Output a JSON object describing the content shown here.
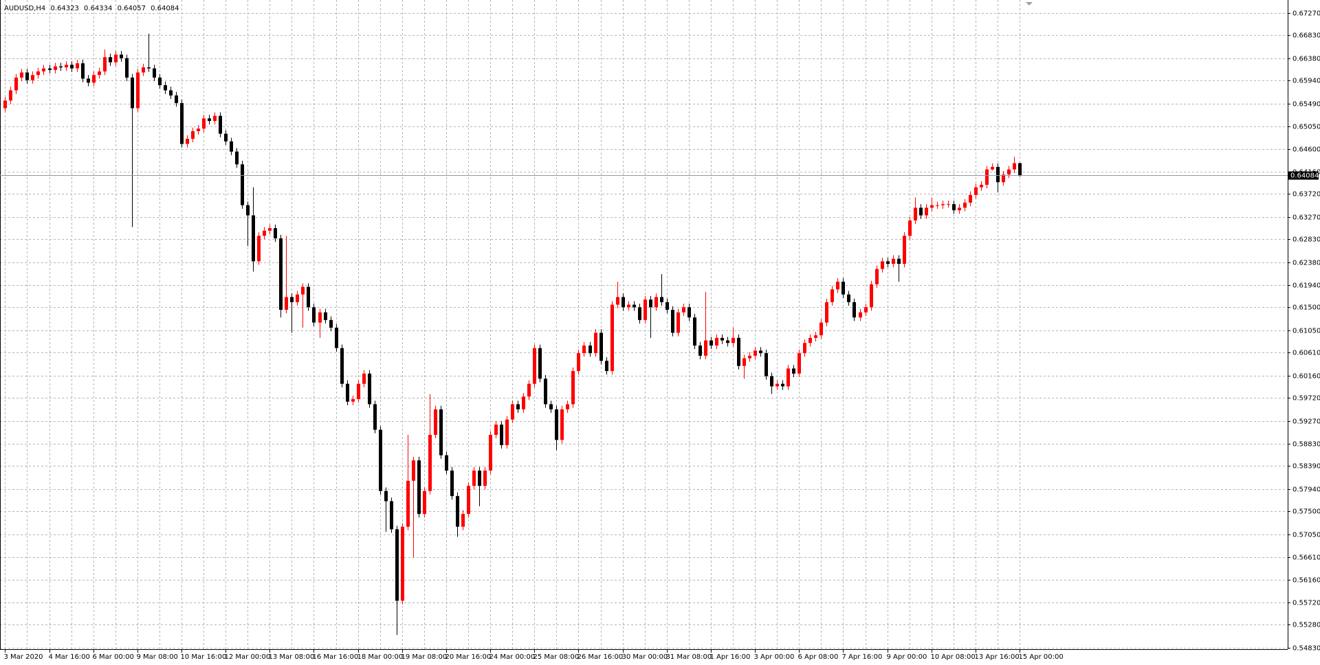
{
  "chart_data": {
    "type": "candlestick",
    "title": "AUDUSD,H4",
    "up_color": "#ff0000",
    "down_color": "#000000",
    "grid": true,
    "ylim": [
      0.548,
      0.6752
    ],
    "yticks": [
      {
        "value": 0.6727,
        "label": "0.67270"
      },
      {
        "value": 0.6683,
        "label": "0.66830"
      },
      {
        "value": 0.6638,
        "label": "0.66380"
      },
      {
        "value": 0.6594,
        "label": "0.65940"
      },
      {
        "value": 0.6549,
        "label": "0.65490"
      },
      {
        "value": 0.6505,
        "label": "0.65050"
      },
      {
        "value": 0.646,
        "label": "0.64600"
      },
      {
        "value": 0.6416,
        "label": "0.64160"
      },
      {
        "value": 0.6372,
        "label": "0.63720"
      },
      {
        "value": 0.6327,
        "label": "0.63270"
      },
      {
        "value": 0.6283,
        "label": "0.62830"
      },
      {
        "value": 0.6238,
        "label": "0.62380"
      },
      {
        "value": 0.6194,
        "label": "0.61940"
      },
      {
        "value": 0.615,
        "label": "0.61500"
      },
      {
        "value": 0.6105,
        "label": "0.61050"
      },
      {
        "value": 0.6061,
        "label": "0.60610"
      },
      {
        "value": 0.6016,
        "label": "0.60160"
      },
      {
        "value": 0.5972,
        "label": "0.59720"
      },
      {
        "value": 0.5927,
        "label": "0.59270"
      },
      {
        "value": 0.5883,
        "label": "0.58830"
      },
      {
        "value": 0.5839,
        "label": "0.58390"
      },
      {
        "value": 0.5794,
        "label": "0.57940"
      },
      {
        "value": 0.575,
        "label": "0.57500"
      },
      {
        "value": 0.5705,
        "label": "0.57050"
      },
      {
        "value": 0.5661,
        "label": "0.56610"
      },
      {
        "value": 0.5616,
        "label": "0.56160"
      },
      {
        "value": 0.5572,
        "label": "0.55720"
      },
      {
        "value": 0.5528,
        "label": "0.55280"
      },
      {
        "value": 0.5483,
        "label": "0.54830"
      }
    ],
    "categories": [
      "3 Mar 2020",
      null,
      null,
      null,
      null,
      null,
      null,
      null,
      "4 Mar 16:00",
      null,
      null,
      null,
      null,
      null,
      null,
      null,
      "6 Mar 00:00",
      null,
      null,
      null,
      null,
      null,
      null,
      null,
      "9 Mar 08:00",
      null,
      null,
      null,
      null,
      null,
      null,
      null,
      "10 Mar 16:00",
      null,
      null,
      null,
      null,
      null,
      null,
      null,
      "12 Mar 00:00",
      null,
      null,
      null,
      null,
      null,
      null,
      null,
      "13 Mar 08:00",
      null,
      null,
      null,
      null,
      null,
      null,
      null,
      "16 Mar 16:00",
      null,
      null,
      null,
      null,
      null,
      null,
      null,
      "18 Mar 00:00",
      null,
      null,
      null,
      null,
      null,
      null,
      null,
      "19 Mar 08:00",
      null,
      null,
      null,
      null,
      null,
      null,
      null,
      "20 Mar 16:00",
      null,
      null,
      null,
      null,
      null,
      null,
      null,
      "24 Mar 00:00",
      null,
      null,
      null,
      null,
      null,
      null,
      null,
      "25 Mar 08:00",
      null,
      null,
      null,
      null,
      null,
      null,
      null,
      "26 Mar 16:00",
      null,
      null,
      null,
      null,
      null,
      null,
      null,
      "30 Mar 00:00",
      null,
      null,
      null,
      null,
      null,
      null,
      null,
      "31 Mar 08:00",
      null,
      null,
      null,
      null,
      null,
      null,
      null,
      "1 Apr 16:00",
      null,
      null,
      null,
      null,
      null,
      null,
      null,
      "3 Apr 00:00",
      null,
      null,
      null,
      null,
      null,
      null,
      null,
      "6 Apr 08:00",
      null,
      null,
      null,
      null,
      null,
      null,
      null,
      "7 Apr 16:00",
      null,
      null,
      null,
      null,
      null,
      null,
      null,
      "9 Apr 00:00",
      null,
      null,
      null,
      null,
      null,
      null,
      null,
      "10 Apr 08:00",
      null,
      null,
      null,
      null,
      null,
      null,
      null,
      "13 Apr 16:00",
      null,
      null,
      null,
      null,
      null,
      null,
      null,
      "15 Apr 00:00"
    ],
    "open": [
      0.654,
      0.6555,
      0.6575,
      0.66,
      0.661,
      0.6595,
      0.6605,
      0.6612,
      0.6618,
      0.6615,
      0.6622,
      0.662,
      0.6625,
      0.6618,
      0.6628,
      0.6598,
      0.659,
      0.6605,
      0.6612,
      0.664,
      0.663,
      0.6645,
      0.6638,
      0.66,
      0.654,
      0.661,
      0.662,
      0.6618,
      0.66,
      0.6585,
      0.6575,
      0.6565,
      0.655,
      0.647,
      0.648,
      0.6495,
      0.65,
      0.652,
      0.6515,
      0.6525,
      0.649,
      0.6475,
      0.6455,
      0.643,
      0.635,
      0.633,
      0.624,
      0.629,
      0.63,
      0.6305,
      0.6285,
      0.6145,
      0.617,
      0.616,
      0.6175,
      0.619,
      0.615,
      0.612,
      0.614,
      0.6125,
      0.611,
      0.607,
      0.6,
      0.5965,
      0.597,
      0.6,
      0.602,
      0.596,
      0.591,
      0.579,
      0.577,
      0.5715,
      0.5575,
      0.572,
      0.581,
      0.585,
      0.5745,
      0.579,
      0.59,
      0.595,
      0.586,
      0.583,
      0.578,
      0.572,
      0.5745,
      0.58,
      0.583,
      0.58,
      0.583,
      0.59,
      0.592,
      0.588,
      0.593,
      0.596,
      0.595,
      0.5975,
      0.6,
      0.607,
      0.601,
      0.596,
      0.595,
      0.589,
      0.595,
      0.596,
      0.6025,
      0.606,
      0.6075,
      0.606,
      0.61,
      0.6045,
      0.6025,
      0.6155,
      0.617,
      0.615,
      0.6155,
      0.615,
      0.6125,
      0.6165,
      0.615,
      0.617,
      0.616,
      0.6145,
      0.61,
      0.614,
      0.615,
      0.613,
      0.6075,
      0.6055,
      0.6085,
      0.6075,
      0.609,
      0.6085,
      0.608,
      0.609,
      0.6035,
      0.605,
      0.6055,
      0.6065,
      0.606,
      0.6015,
      0.5995,
      0.6,
      0.5995,
      0.603,
      0.602,
      0.606,
      0.608,
      0.609,
      0.6095,
      0.612,
      0.616,
      0.6185,
      0.62,
      0.6175,
      0.616,
      0.613,
      0.614,
      0.615,
      0.6195,
      0.6225,
      0.624,
      0.6235,
      0.6245,
      0.6235,
      0.629,
      0.632,
      0.6345,
      0.633,
      0.6345,
      0.635,
      0.635,
      0.6352,
      0.6352,
      0.634,
      0.6345,
      0.6355,
      0.637,
      0.6385,
      0.639,
      0.642,
      0.6425,
      0.6395,
      0.641,
      0.642,
      0.64323
    ],
    "high": [
      0.6562,
      0.6582,
      0.6607,
      0.6617,
      0.6617,
      0.6612,
      0.6619,
      0.6625,
      0.6625,
      0.6629,
      0.6629,
      0.6632,
      0.6632,
      0.6635,
      0.6635,
      0.6605,
      0.6612,
      0.6619,
      0.6655,
      0.6647,
      0.6652,
      0.6652,
      0.6645,
      0.6607,
      0.6617,
      0.6627,
      0.6686,
      0.6625,
      0.6607,
      0.6592,
      0.6582,
      0.6572,
      0.6557,
      0.6487,
      0.6502,
      0.6507,
      0.6527,
      0.6527,
      0.6532,
      0.6532,
      0.6497,
      0.6482,
      0.6462,
      0.6437,
      0.6357,
      0.6385,
      0.6297,
      0.6307,
      0.6312,
      0.6312,
      0.6292,
      0.629,
      0.6177,
      0.6182,
      0.6197,
      0.6197,
      0.6157,
      0.6147,
      0.6147,
      0.6132,
      0.6117,
      0.6077,
      0.6007,
      0.5977,
      0.6007,
      0.6027,
      0.6027,
      0.5967,
      0.5917,
      0.5797,
      0.5777,
      0.5722,
      0.5727,
      0.59,
      0.5857,
      0.5857,
      0.5797,
      0.598,
      0.5957,
      0.5957,
      0.5867,
      0.5837,
      0.5787,
      0.5752,
      0.5807,
      0.5837,
      0.5837,
      0.5837,
      0.5907,
      0.5927,
      0.5927,
      0.5937,
      0.5967,
      0.5967,
      0.5982,
      0.6007,
      0.6077,
      0.6077,
      0.6017,
      0.5967,
      0.5957,
      0.5957,
      0.5967,
      0.6032,
      0.6067,
      0.6082,
      0.6082,
      0.6107,
      0.6107,
      0.6052,
      0.6162,
      0.62,
      0.6177,
      0.6162,
      0.6162,
      0.6157,
      0.6172,
      0.6172,
      0.6177,
      0.6215,
      0.6167,
      0.6152,
      0.6147,
      0.6157,
      0.6157,
      0.6137,
      0.6082,
      0.618,
      0.6092,
      0.6097,
      0.6097,
      0.6092,
      0.611,
      0.6097,
      0.6057,
      0.6062,
      0.6072,
      0.6072,
      0.6067,
      0.6022,
      0.6007,
      0.6007,
      0.6037,
      0.6037,
      0.6067,
      0.6087,
      0.6097,
      0.6102,
      0.6127,
      0.6167,
      0.6192,
      0.6207,
      0.6207,
      0.6182,
      0.6167,
      0.6147,
      0.6157,
      0.6202,
      0.6232,
      0.6247,
      0.6247,
      0.6252,
      0.6252,
      0.6297,
      0.6327,
      0.6365,
      0.6352,
      0.6352,
      0.6365,
      0.6357,
      0.6359,
      0.6359,
      0.6359,
      0.6352,
      0.6362,
      0.6377,
      0.6392,
      0.6397,
      0.6427,
      0.6432,
      0.6432,
      0.6417,
      0.6427,
      0.6445,
      0.64334
    ],
    "low": [
      0.6533,
      0.6548,
      0.6568,
      0.6593,
      0.6588,
      0.6588,
      0.6598,
      0.6605,
      0.6608,
      0.6608,
      0.6613,
      0.6613,
      0.6611,
      0.6611,
      0.6591,
      0.6583,
      0.6583,
      0.6598,
      0.6605,
      0.6623,
      0.6623,
      0.6631,
      0.6593,
      0.6307,
      0.6533,
      0.6603,
      0.6611,
      0.6593,
      0.6578,
      0.6568,
      0.6558,
      0.6543,
      0.6463,
      0.6463,
      0.6473,
      0.6488,
      0.6493,
      0.6508,
      0.6508,
      0.6483,
      0.6468,
      0.6448,
      0.6423,
      0.6343,
      0.627,
      0.622,
      0.6233,
      0.6283,
      0.6293,
      0.6278,
      0.613,
      0.6138,
      0.61,
      0.6153,
      0.611,
      0.6143,
      0.6113,
      0.609,
      0.6118,
      0.6103,
      0.6063,
      0.5993,
      0.5958,
      0.5958,
      0.5963,
      0.5993,
      0.5953,
      0.5903,
      0.5783,
      0.571,
      0.5708,
      0.5508,
      0.5568,
      0.5713,
      0.566,
      0.5738,
      0.5738,
      0.5783,
      0.5893,
      0.5853,
      0.5823,
      0.5773,
      0.57,
      0.5713,
      0.5738,
      0.5793,
      0.576,
      0.5793,
      0.5823,
      0.5893,
      0.5873,
      0.5873,
      0.5923,
      0.5943,
      0.5943,
      0.5968,
      0.5993,
      0.6003,
      0.5953,
      0.5943,
      0.587,
      0.5883,
      0.5943,
      0.5953,
      0.6018,
      0.6053,
      0.6053,
      0.6053,
      0.6038,
      0.6018,
      0.6018,
      0.6148,
      0.6143,
      0.6143,
      0.6143,
      0.6118,
      0.6118,
      0.609,
      0.6143,
      0.6153,
      0.6138,
      0.6093,
      0.6093,
      0.6133,
      0.6123,
      0.6068,
      0.6048,
      0.6048,
      0.6068,
      0.6068,
      0.6078,
      0.6073,
      0.6073,
      0.6028,
      0.601,
      0.6043,
      0.6048,
      0.6053,
      0.6008,
      0.598,
      0.5988,
      0.5988,
      0.5988,
      0.6013,
      0.6013,
      0.6053,
      0.6073,
      0.6083,
      0.6088,
      0.6113,
      0.6153,
      0.6178,
      0.6168,
      0.6153,
      0.6123,
      0.6123,
      0.6133,
      0.6143,
      0.6188,
      0.6218,
      0.6228,
      0.6228,
      0.62,
      0.6228,
      0.6283,
      0.6313,
      0.6323,
      0.6323,
      0.6338,
      0.6343,
      0.6343,
      0.6345,
      0.6333,
      0.6333,
      0.6338,
      0.6348,
      0.6363,
      0.6378,
      0.6383,
      0.6418,
      0.6375,
      0.6388,
      0.6403,
      0.6413,
      0.64057
    ],
    "close": [
      0.6555,
      0.6575,
      0.66,
      0.661,
      0.6595,
      0.6605,
      0.6612,
      0.6618,
      0.6615,
      0.6622,
      0.662,
      0.6625,
      0.6618,
      0.6628,
      0.6598,
      0.659,
      0.6605,
      0.6612,
      0.664,
      0.663,
      0.6645,
      0.6638,
      0.66,
      0.654,
      0.661,
      0.662,
      0.6618,
      0.66,
      0.6585,
      0.6575,
      0.6565,
      0.655,
      0.647,
      0.648,
      0.6495,
      0.65,
      0.652,
      0.6515,
      0.6525,
      0.649,
      0.6475,
      0.6455,
      0.643,
      0.635,
      0.633,
      0.624,
      0.629,
      0.63,
      0.6305,
      0.6285,
      0.6145,
      0.617,
      0.616,
      0.6175,
      0.619,
      0.615,
      0.612,
      0.614,
      0.6125,
      0.611,
      0.607,
      0.6,
      0.5965,
      0.597,
      0.6,
      0.602,
      0.596,
      0.591,
      0.579,
      0.577,
      0.5715,
      0.5575,
      0.572,
      0.581,
      0.585,
      0.5745,
      0.579,
      0.59,
      0.595,
      0.586,
      0.583,
      0.578,
      0.572,
      0.5745,
      0.58,
      0.583,
      0.58,
      0.583,
      0.59,
      0.592,
      0.588,
      0.593,
      0.596,
      0.595,
      0.5975,
      0.6,
      0.607,
      0.601,
      0.596,
      0.595,
      0.589,
      0.595,
      0.596,
      0.6025,
      0.606,
      0.6075,
      0.606,
      0.61,
      0.6045,
      0.6025,
      0.6155,
      0.617,
      0.615,
      0.6155,
      0.615,
      0.6125,
      0.6165,
      0.615,
      0.617,
      0.616,
      0.6145,
      0.61,
      0.614,
      0.615,
      0.613,
      0.6075,
      0.6055,
      0.6085,
      0.6075,
      0.609,
      0.6085,
      0.608,
      0.609,
      0.6035,
      0.605,
      0.6055,
      0.6065,
      0.606,
      0.6015,
      0.5995,
      0.6,
      0.5995,
      0.603,
      0.602,
      0.606,
      0.608,
      0.609,
      0.6095,
      0.612,
      0.616,
      0.6185,
      0.62,
      0.6175,
      0.616,
      0.613,
      0.614,
      0.615,
      0.6195,
      0.6225,
      0.624,
      0.6235,
      0.6245,
      0.6235,
      0.629,
      0.632,
      0.6345,
      0.633,
      0.6345,
      0.635,
      0.635,
      0.6352,
      0.6352,
      0.634,
      0.6345,
      0.6355,
      0.637,
      0.6385,
      0.639,
      0.642,
      0.6425,
      0.6395,
      0.641,
      0.642,
      0.64323,
      0.64084
    ]
  }
}
